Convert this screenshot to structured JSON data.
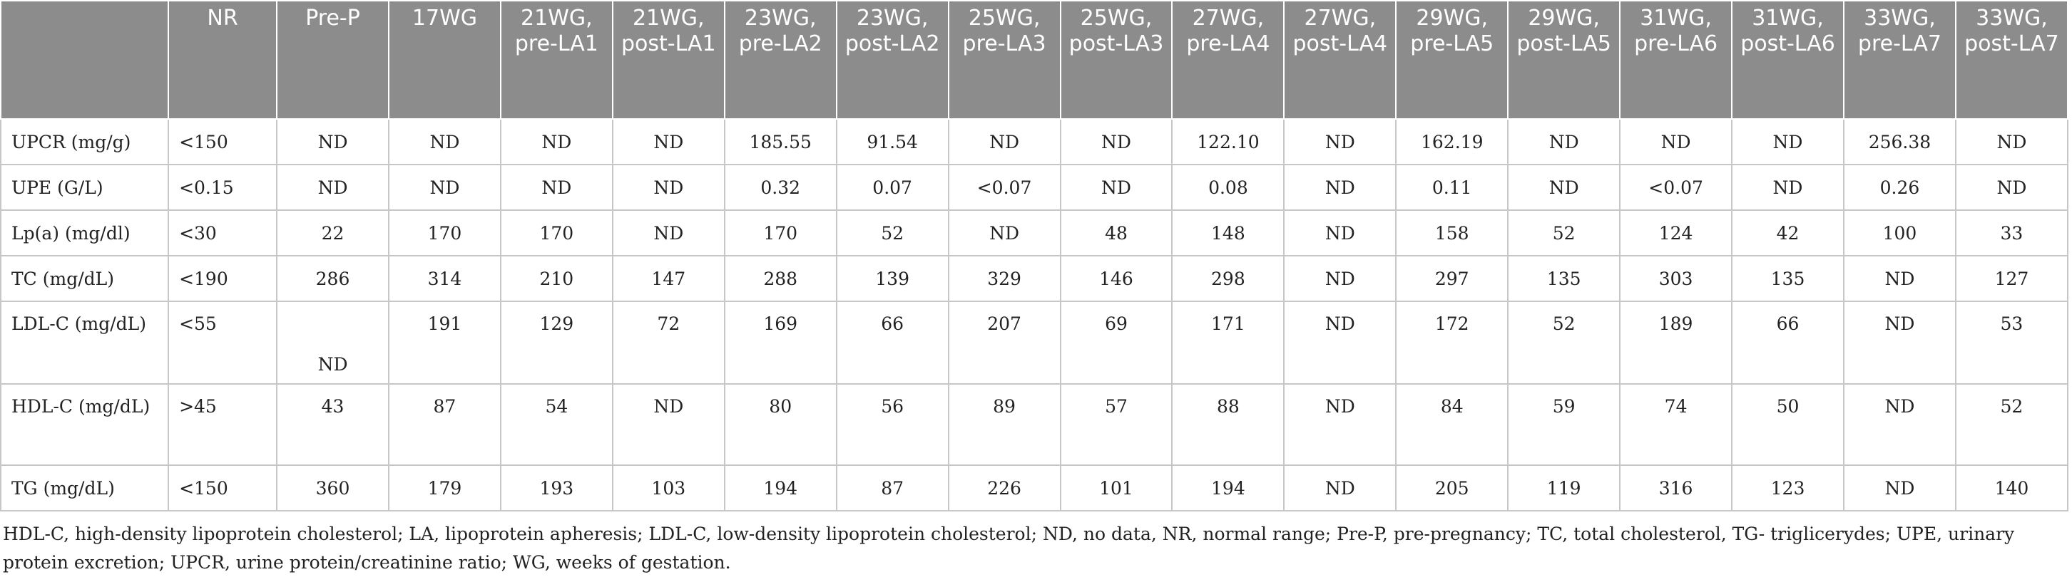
{
  "table": {
    "headers": [
      "",
      "NR",
      "Pre-P",
      "17WG",
      "21WG, pre-LA1",
      "21WG, post-LA1",
      "23WG, pre-LA2",
      "23WG, post-LA2",
      "25WG, pre-LA3",
      "25WG, post-LA3",
      "27WG, pre-LA4",
      "27WG, post-LA4",
      "29WG, pre-LA5",
      "29WG, post-LA5",
      "31WG, pre-LA6",
      "31WG, post-LA6",
      "33WG, pre-LA7",
      "33WG, post-LA7"
    ],
    "rows": [
      {
        "label": "UPCR (mg/g)",
        "nr": "<150",
        "cells": [
          "ND",
          "ND",
          "ND",
          "ND",
          "185.55",
          "91.54",
          "ND",
          "ND",
          "122.10",
          "ND",
          "162.19",
          "ND",
          "ND",
          "ND",
          "256.38",
          "ND"
        ]
      },
      {
        "label": "UPE (G/L)",
        "nr": "<0.15",
        "cells": [
          "ND",
          "ND",
          "ND",
          "ND",
          "0.32",
          "0.07",
          "<0.07",
          "ND",
          "0.08",
          "ND",
          "0.11",
          "ND",
          "<0.07",
          "ND",
          "0.26",
          "ND"
        ]
      },
      {
        "label": "Lp(a) (mg/dl)",
        "nr": "<30",
        "cells": [
          "22",
          "170",
          "170",
          "ND",
          "170",
          "52",
          "ND",
          "48",
          "148",
          "ND",
          "158",
          "52",
          "124",
          "42",
          "100",
          "33"
        ]
      },
      {
        "label": "TC (mg/dL)",
        "nr": "<190",
        "cells": [
          "286",
          "314",
          "210",
          "147",
          "288",
          "139",
          "329",
          "146",
          "298",
          "ND",
          "297",
          "135",
          "303",
          "135",
          "ND",
          "127"
        ]
      },
      {
        "label": "LDL-C (mg/dL)",
        "nr": "<55",
        "cells": [
          "ND",
          "191",
          "129",
          "72",
          "169",
          "66",
          "207",
          "69",
          "171",
          "ND",
          "172",
          "52",
          "189",
          "66",
          "ND",
          "53"
        ]
      },
      {
        "label": "HDL-C (mg/dL)",
        "nr": ">45",
        "cells": [
          "43",
          "87",
          "54",
          "ND",
          "80",
          "56",
          "89",
          "57",
          "88",
          "ND",
          "84",
          "59",
          "74",
          "50",
          "ND",
          "52"
        ]
      },
      {
        "label": "TG (mg/dL)",
        "nr": "<150",
        "cells": [
          "360",
          "179",
          "193",
          "103",
          "194",
          "87",
          "226",
          "101",
          "194",
          "ND",
          "205",
          "119",
          "316",
          "123",
          "ND",
          "140"
        ]
      }
    ]
  },
  "footnote": "HDL-C, high-density lipoprotein cholesterol; LA, lipoprotein apheresis; LDL-C, low-density lipoprotein cholesterol; ND, no data, NR, normal range; Pre-P, pre-pregnancy; TC, total cholesterol, TG- triglicerydes; UPE, urinary protein excretion; UPCR, urine protein/creatinine ratio; WG, weeks of gestation."
}
